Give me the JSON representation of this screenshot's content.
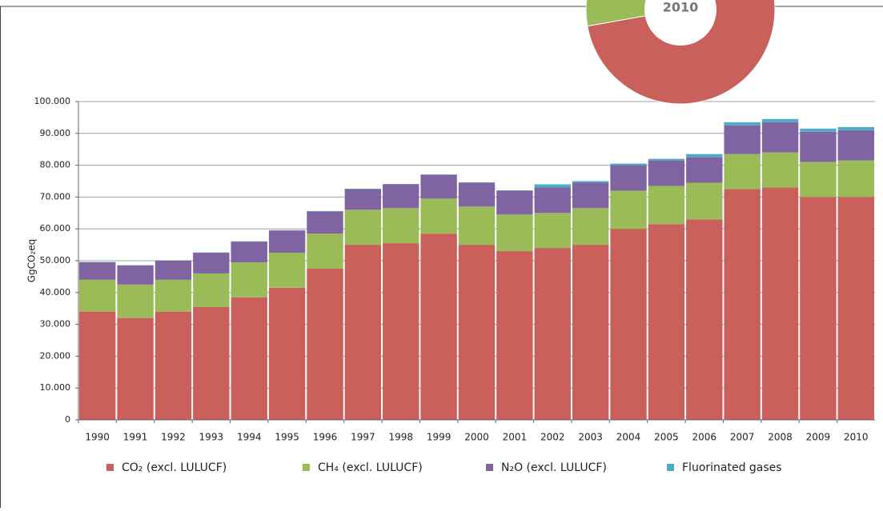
{
  "chart_data": {
    "type": "stacked_bar",
    "y_label": "GgCO₂eq",
    "categories": [
      "1990",
      "1991",
      "1992",
      "1993",
      "1994",
      "1995",
      "1996",
      "1997",
      "1998",
      "1999",
      "2000",
      "2001",
      "2002",
      "2003",
      "2004",
      "2005",
      "2006",
      "2007",
      "2008",
      "2009",
      "2010"
    ],
    "series": [
      {
        "name": "CO₂ (excl. LULUCF)",
        "color": "#c9605c",
        "values": [
          34000,
          32000,
          34000,
          35500,
          38500,
          41500,
          47500,
          55000,
          55500,
          58500,
          55000,
          53000,
          54000,
          55000,
          60000,
          61500,
          63000,
          72500,
          73000,
          70000,
          70000
        ]
      },
      {
        "name": "CH₄ (excl. LULUCF)",
        "color": "#9bbb59",
        "values": [
          10000,
          10500,
          10000,
          10500,
          11000,
          11000,
          11000,
          11000,
          11000,
          11000,
          12000,
          11500,
          11000,
          11500,
          12000,
          12000,
          11500,
          11000,
          11000,
          11000,
          11500
        ]
      },
      {
        "name": "N₂O (excl. LULUCF)",
        "color": "#8064a2",
        "values": [
          5500,
          6000,
          6000,
          6500,
          6500,
          7000,
          7000,
          6500,
          7500,
          7500,
          7500,
          7500,
          8000,
          8000,
          8000,
          8000,
          8000,
          9000,
          9500,
          9500,
          9500
        ]
      },
      {
        "name": "Fluorinated gases",
        "color": "#4bacc6",
        "values": [
          100,
          100,
          100,
          100,
          100,
          100,
          100,
          100,
          100,
          100,
          100,
          100,
          1000,
          500,
          500,
          500,
          1000,
          1000,
          1000,
          1000,
          1000
        ]
      }
    ],
    "ylim": [
      0,
      100000
    ],
    "yticks": [
      0,
      {
        "value": 10000,
        "label": "10.000"
      },
      {
        "value": 20000,
        "label": "20.000"
      },
      {
        "value": 30000,
        "label": "30.000"
      },
      {
        "value": 40000,
        "label": "40.000"
      },
      {
        "value": 50000,
        "label": "50.000"
      },
      {
        "value": 60000,
        "label": "60.000"
      },
      {
        "value": 70000,
        "label": "70.000"
      },
      {
        "value": 80000,
        "label": "80.000"
      },
      {
        "value": 90000,
        "label": "90.000"
      },
      {
        "value": 100000,
        "label": "100.000"
      }
    ],
    "grid": true
  }
}
